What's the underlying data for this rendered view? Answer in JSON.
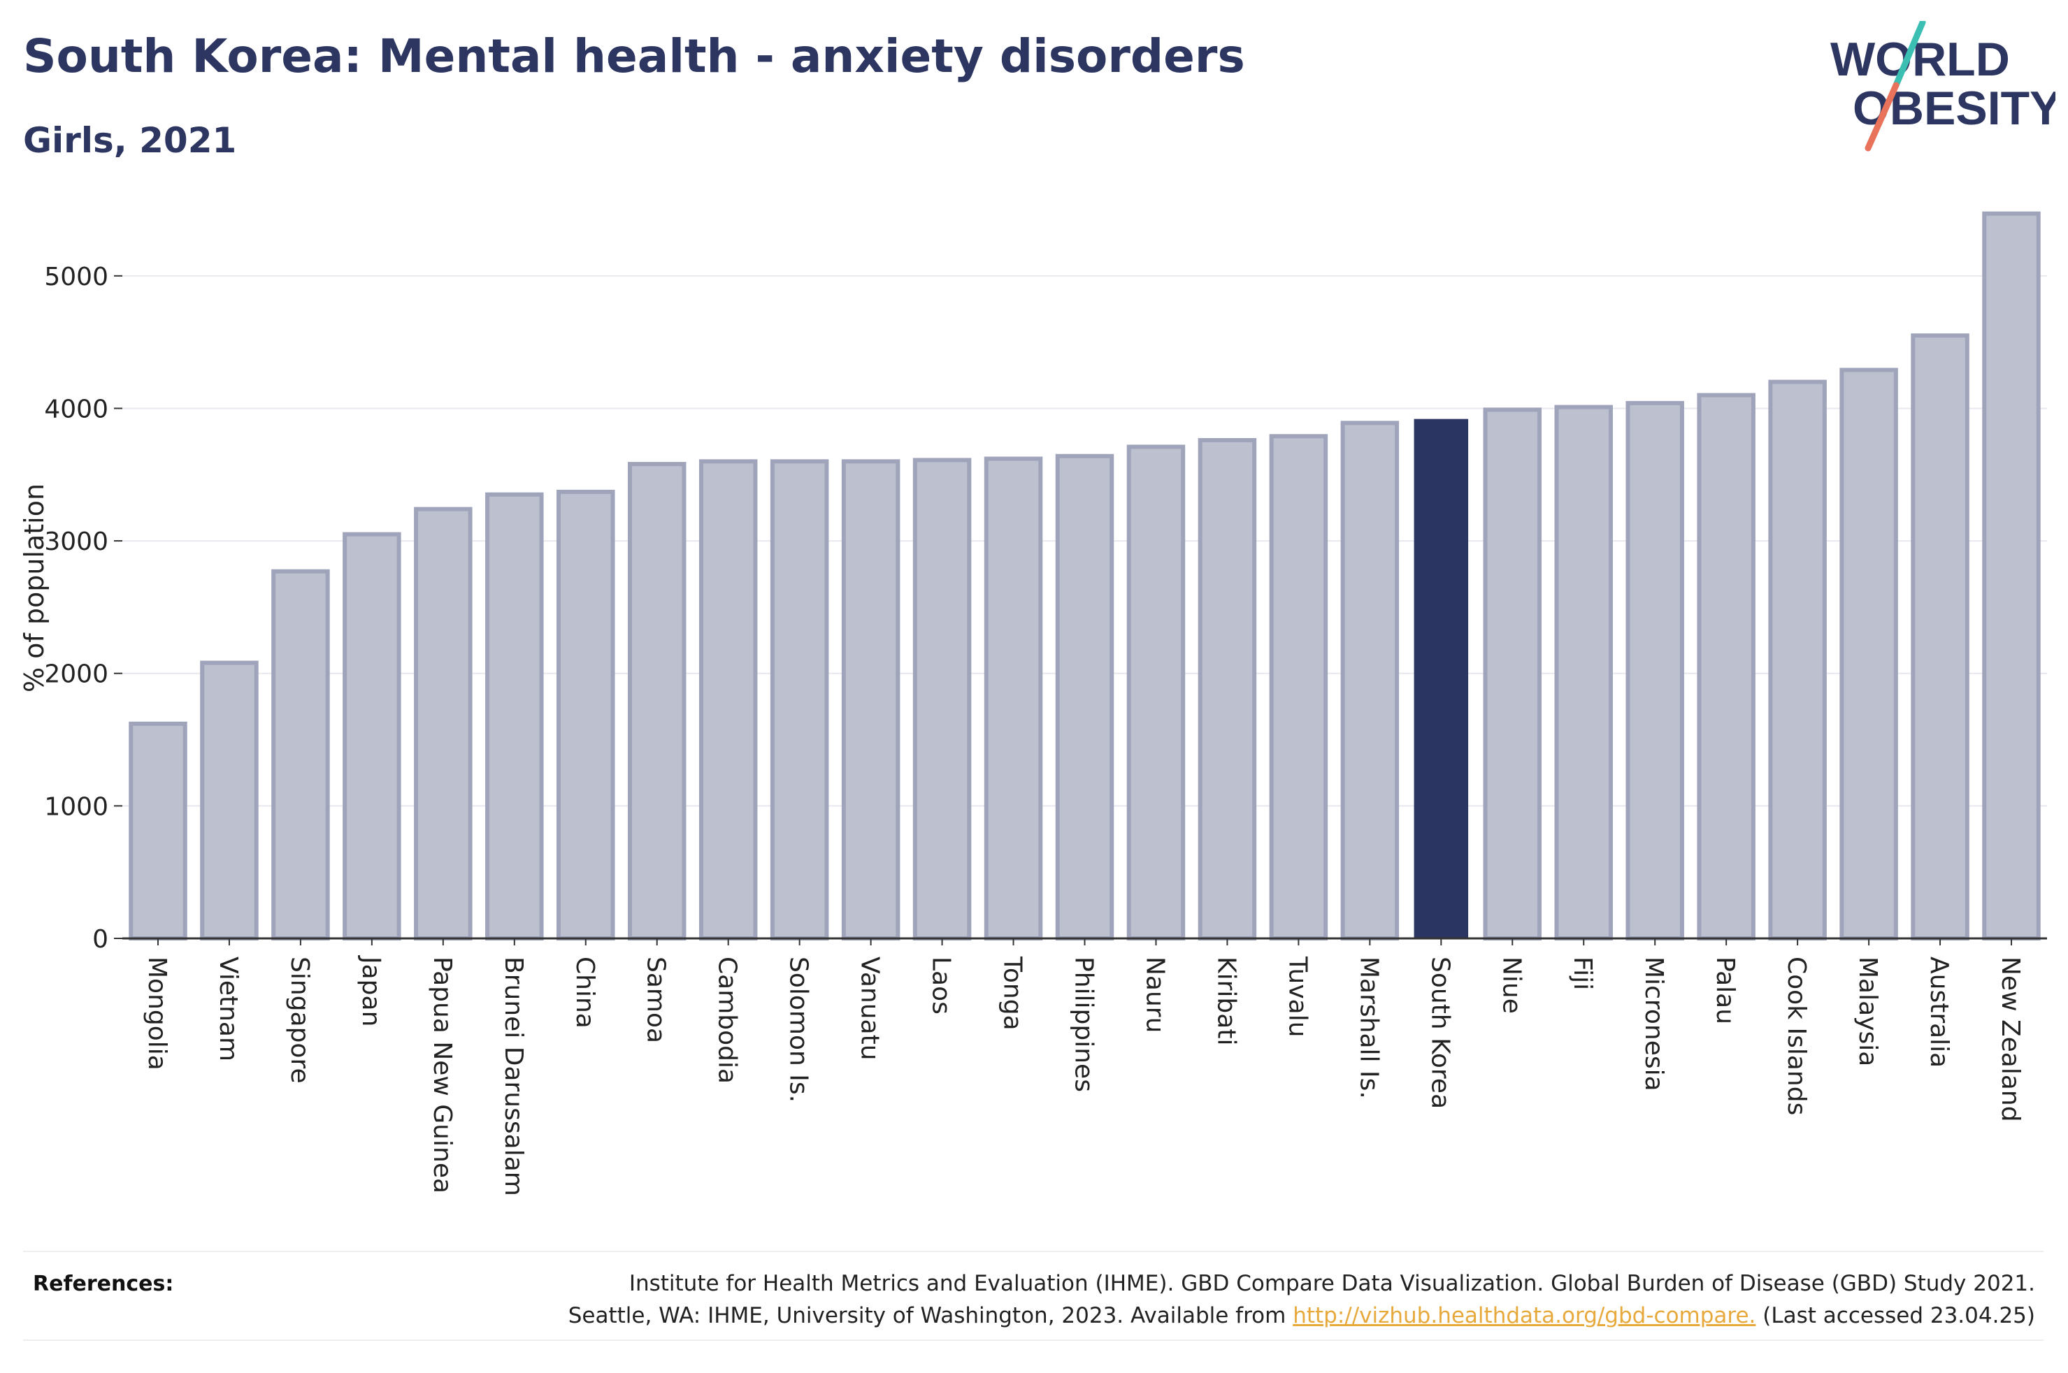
{
  "header": {
    "title": "South Korea: Mental health - anxiety disorders",
    "subtitle": "Girls, 2021"
  },
  "logo": {
    "line1": "WORLD",
    "line2": "OBESITY",
    "colors": {
      "text": "#2d3561",
      "slash_top": "#3bbfb3",
      "slash_bottom": "#e8735a"
    }
  },
  "chart_data": {
    "type": "bar",
    "title": "South Korea: Mental health - anxiety disorders",
    "subtitle": "Girls, 2021",
    "xlabel": "",
    "ylabel": "% of population",
    "ylim": [
      0,
      5500
    ],
    "yticks": [
      0,
      1000,
      2000,
      3000,
      4000,
      5000
    ],
    "grid": true,
    "highlight": "South Korea",
    "colors": {
      "bar": "#bdc0cf",
      "bar_edge": "#9fa4bb",
      "highlight": "#2b3561",
      "grid": "#e8e8ee",
      "axis": "#333333"
    },
    "categories": [
      "Mongolia",
      "Vietnam",
      "Singapore",
      "Japan",
      "Papua New Guinea",
      "Brunei Darussalam",
      "China",
      "Samoa",
      "Cambodia",
      "Solomon Is.",
      "Vanuatu",
      "Laos",
      "Tonga",
      "Philippines",
      "Nauru",
      "Kiribati",
      "Tuvalu",
      "Marshall Is.",
      "South Korea",
      "Niue",
      "Fiji",
      "Micronesia",
      "Palau",
      "Cook Islands",
      "Malaysia",
      "Australia",
      "New Zealand"
    ],
    "values": [
      1620,
      2080,
      2770,
      3050,
      3240,
      3350,
      3370,
      3580,
      3600,
      3600,
      3600,
      3610,
      3620,
      3640,
      3710,
      3760,
      3790,
      3890,
      3920,
      3990,
      4010,
      4040,
      4100,
      4200,
      4290,
      4550,
      5470
    ]
  },
  "references": {
    "label": "References:",
    "line1": "Institute for Health Metrics and Evaluation (IHME). GBD Compare Data Visualization. Global Burden of Disease (GBD) Study 2021.",
    "line2_prefix": "Seattle, WA: IHME, University of Washington, 2023. Available from",
    "link": "http://vizhub.healthdata.org/gbd-compare.",
    "line2_suffix": "(Last accessed 23.04.25)"
  }
}
